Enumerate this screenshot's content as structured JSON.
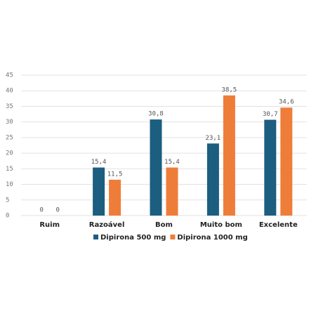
{
  "chart_data": {
    "type": "bar",
    "categories": [
      "Ruim",
      "Razoável",
      "Bom",
      "Muito bom",
      "Excelente"
    ],
    "series": [
      {
        "name": "Dipirona 500 mg",
        "color": "#1b5e80",
        "values": [
          0,
          15.4,
          30.8,
          23.1,
          30.7
        ],
        "value_labels": [
          "0",
          "15,4",
          "30,8",
          "23,1",
          "30,7"
        ]
      },
      {
        "name": "Dipirona 1000 mg",
        "color": "#ef7d3a",
        "values": [
          0,
          11.5,
          15.4,
          38.5,
          34.6
        ],
        "value_labels": [
          "0",
          "11,5",
          "15,4",
          "38,5",
          "34,6"
        ]
      }
    ],
    "ylim": [
      0,
      45
    ],
    "yticks": [
      0,
      5,
      10,
      15,
      20,
      25,
      30,
      35,
      40,
      45
    ],
    "grid": true,
    "legend": "bottom"
  }
}
